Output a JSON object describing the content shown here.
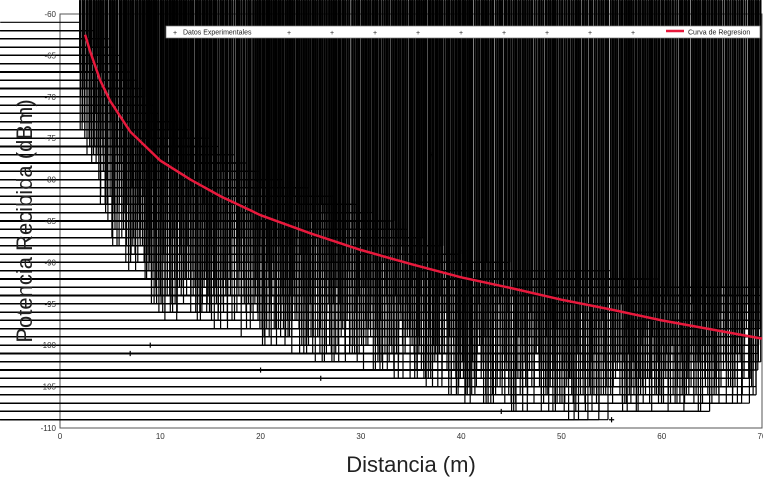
{
  "chart_data": {
    "type": "scatter",
    "xlabel": "Distancia (m)",
    "ylabel": "Potencia Recibida (dBm)",
    "xlim": [
      0,
      70
    ],
    "ylim": [
      -110,
      -60
    ],
    "x_ticks": [
      0,
      10,
      20,
      30,
      40,
      50,
      60,
      70
    ],
    "y_ticks": [
      -60,
      -65,
      -70,
      -75,
      -80,
      -85,
      -90,
      -95,
      -100,
      -105,
      -110
    ],
    "x_tick_labels": [
      "0",
      "10",
      "20",
      "30",
      "40",
      "50",
      "60",
      "70"
    ],
    "y_tick_labels": [
      "-60",
      "-65",
      "-70",
      "-75",
      "-80",
      "-85",
      "-90",
      "-95",
      "-100",
      "-105",
      "-110"
    ],
    "grid": false,
    "legend_placement": "top",
    "series": [
      {
        "name": "Datos Experimentales",
        "kind": "scatter",
        "marker": "+",
        "color": "#000000",
        "envelope": {
          "x": [
            2,
            5,
            10,
            15,
            20,
            25,
            30,
            35,
            40,
            45,
            50,
            55,
            60,
            65,
            70
          ],
          "upper": [
            -61,
            -63,
            -72,
            -75,
            -79,
            -81,
            -83,
            -86,
            -89,
            -90,
            -91,
            -91,
            -92,
            -93,
            -93
          ],
          "lower": [
            -75,
            -88,
            -97,
            -98,
            -100,
            -102,
            -103,
            -105,
            -107,
            -108,
            -109,
            -109,
            -108,
            -108,
            -107
          ]
        },
        "outliers": [
          [
            7,
            -101
          ],
          [
            9,
            -100
          ],
          [
            20,
            -103
          ],
          [
            26,
            -104
          ],
          [
            37,
            -77
          ],
          [
            44,
            -108
          ],
          [
            55,
            -109
          ]
        ]
      },
      {
        "name": "Curva de Regresion",
        "kind": "line",
        "color": "#e8193c",
        "x": [
          2.5,
          3,
          4,
          5,
          7,
          10,
          13,
          16,
          20,
          25,
          30,
          35,
          40,
          45,
          50,
          55,
          60,
          65,
          70
        ],
        "y": [
          -62.5,
          -64.5,
          -68,
          -70.5,
          -74.2,
          -77.7,
          -80,
          -82,
          -84.3,
          -86.5,
          -88.5,
          -90.2,
          -91.8,
          -93.1,
          -94.5,
          -95.7,
          -97,
          -98.1,
          -99.2
        ]
      }
    ]
  }
}
